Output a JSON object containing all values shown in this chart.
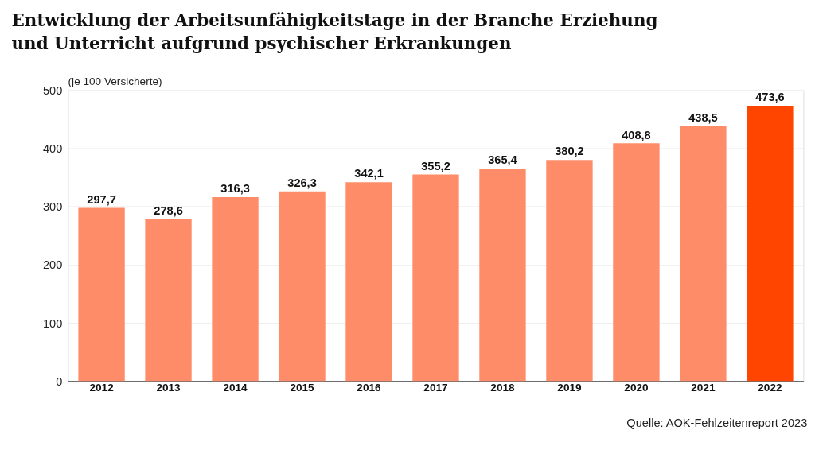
{
  "chart_data": {
    "type": "bar",
    "title": "Entwicklung der Arbeitsunfähigkeitstage in der Branche Erziehung und Unterricht aufgrund psychischer Erkrankungen",
    "ylabel": "(je 100 Versicherte)",
    "categories": [
      "2012",
      "2013",
      "2014",
      "2015",
      "2016",
      "2017",
      "2018",
      "2019",
      "2020",
      "2021",
      "2022"
    ],
    "values": [
      297.7,
      278.6,
      316.3,
      326.3,
      342.1,
      355.2,
      365.4,
      380.2,
      408.8,
      438.5,
      473.6
    ],
    "colors": [
      "#ff8c69",
      "#ff8c69",
      "#ff8c69",
      "#ff8c69",
      "#ff8c69",
      "#ff8c69",
      "#ff8c69",
      "#ff8c69",
      "#ff8c69",
      "#ff8c69",
      "#ff4500"
    ],
    "value_labels": [
      "297,7",
      "278,6",
      "316,3",
      "326,3",
      "342,1",
      "355,2",
      "365,4",
      "380,2",
      "408,8",
      "438,5",
      "473,6"
    ],
    "ylim": [
      0,
      500
    ],
    "yticks": [
      0,
      100,
      200,
      300,
      400,
      500
    ],
    "grid": "y",
    "annotations": [
      "Quelle: AOK-Fehlzeitenreport 2023"
    ]
  }
}
